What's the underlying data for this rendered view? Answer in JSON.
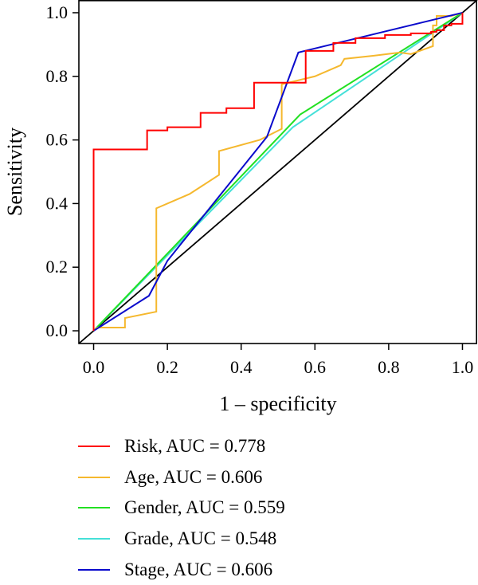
{
  "chart_data": {
    "type": "line",
    "xlabel": "1 – specificity",
    "ylabel": "Sensitivity",
    "xlim": [
      -0.04,
      1.04
    ],
    "ylim": [
      -0.04,
      1.04
    ],
    "xticks": [
      0.0,
      0.2,
      0.4,
      0.6,
      0.8,
      1.0
    ],
    "yticks": [
      0.0,
      0.2,
      0.4,
      0.6,
      0.8,
      1.0
    ],
    "xtick_labels": [
      "0.0",
      "0.2",
      "0.4",
      "0.6",
      "0.8",
      "1.0"
    ],
    "ytick_labels": [
      "0.0",
      "0.2",
      "0.4",
      "0.6",
      "0.8",
      "1.0"
    ],
    "reference_line": {
      "x": [
        -0.04,
        1.04
      ],
      "y": [
        -0.04,
        1.04
      ],
      "color": "#000000"
    },
    "legend_position": "below",
    "series": [
      {
        "name": "Risk, AUC = 0.778",
        "color": "#ff0000",
        "x": [
          0.0,
          0.0,
          0.145,
          0.145,
          0.2,
          0.2,
          0.26,
          0.26,
          0.29,
          0.29,
          0.36,
          0.36,
          0.435,
          0.435,
          0.575,
          0.575,
          0.65,
          0.65,
          0.71,
          0.71,
          0.79,
          0.79,
          0.86,
          0.86,
          0.915,
          0.915,
          0.93,
          0.93,
          0.95,
          0.95,
          0.97,
          0.97,
          1.0,
          1.0
        ],
        "y": [
          0.0,
          0.57,
          0.57,
          0.63,
          0.63,
          0.64,
          0.64,
          0.64,
          0.64,
          0.685,
          0.685,
          0.7,
          0.7,
          0.78,
          0.78,
          0.88,
          0.88,
          0.905,
          0.905,
          0.92,
          0.92,
          0.93,
          0.93,
          0.935,
          0.935,
          0.94,
          0.94,
          0.945,
          0.945,
          0.96,
          0.96,
          0.965,
          0.965,
          1.0
        ]
      },
      {
        "name": "Age, AUC = 0.606",
        "color": "#f5b82e",
        "x": [
          0.0,
          0.01,
          0.085,
          0.085,
          0.17,
          0.17,
          0.26,
          0.34,
          0.34,
          0.45,
          0.51,
          0.51,
          0.6,
          0.67,
          0.68,
          0.76,
          0.83,
          0.86,
          0.92,
          0.92,
          0.93,
          0.93,
          0.97,
          0.97,
          1.0
        ],
        "y": [
          0.0,
          0.01,
          0.01,
          0.04,
          0.06,
          0.385,
          0.43,
          0.49,
          0.565,
          0.6,
          0.635,
          0.775,
          0.8,
          0.835,
          0.855,
          0.865,
          0.875,
          0.87,
          0.895,
          0.96,
          0.96,
          0.99,
          0.99,
          0.99,
          1.0
        ]
      },
      {
        "name": "Gender, AUC = 0.559",
        "color": "#22e022",
        "x": [
          0.0,
          0.56,
          1.0
        ],
        "y": [
          0.0,
          0.68,
          1.0
        ]
      },
      {
        "name": "Grade, AUC = 0.548",
        "color": "#44e0d8",
        "x": [
          0.0,
          0.54,
          1.0
        ],
        "y": [
          0.0,
          0.64,
          1.0
        ]
      },
      {
        "name": "Stage, AUC = 0.606",
        "color": "#0a0acc",
        "x": [
          0.0,
          0.15,
          0.2,
          0.47,
          0.555,
          1.0
        ],
        "y": [
          0.0,
          0.11,
          0.22,
          0.61,
          0.875,
          1.0
        ]
      }
    ]
  }
}
